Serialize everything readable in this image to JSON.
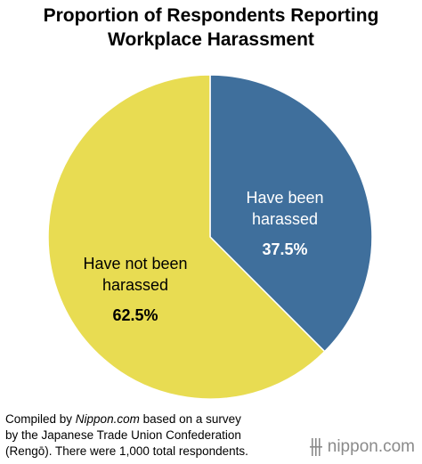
{
  "chart_data": {
    "type": "pie",
    "title_lines": [
      "Proportion of Respondents Reporting",
      "Workplace Harassment"
    ],
    "slices": [
      {
        "label_lines": [
          "Have been",
          "harassed"
        ],
        "value": 37.5,
        "value_label": "37.5%",
        "color": "#3f6f9c",
        "text_color": "#ffffff"
      },
      {
        "label_lines": [
          "Have not been",
          "harassed"
        ],
        "value": 62.5,
        "value_label": "62.5%",
        "color": "#e8dc52",
        "text_color": "#000000"
      }
    ],
    "start": "12 o'clock",
    "direction": "clockwise",
    "legend": "none"
  },
  "source_note": {
    "lines": [
      [
        "Compiled by ",
        {
          "italic": "Nippon.com"
        },
        " based on a survey"
      ],
      [
        "by the Japanese Trade Union Confederation"
      ],
      [
        "(Rengō). There were 1,000 total respondents."
      ]
    ]
  },
  "brand": {
    "text": "nippon.com",
    "icon": "nippon-mark-icon",
    "color": "#8a8a8a"
  }
}
